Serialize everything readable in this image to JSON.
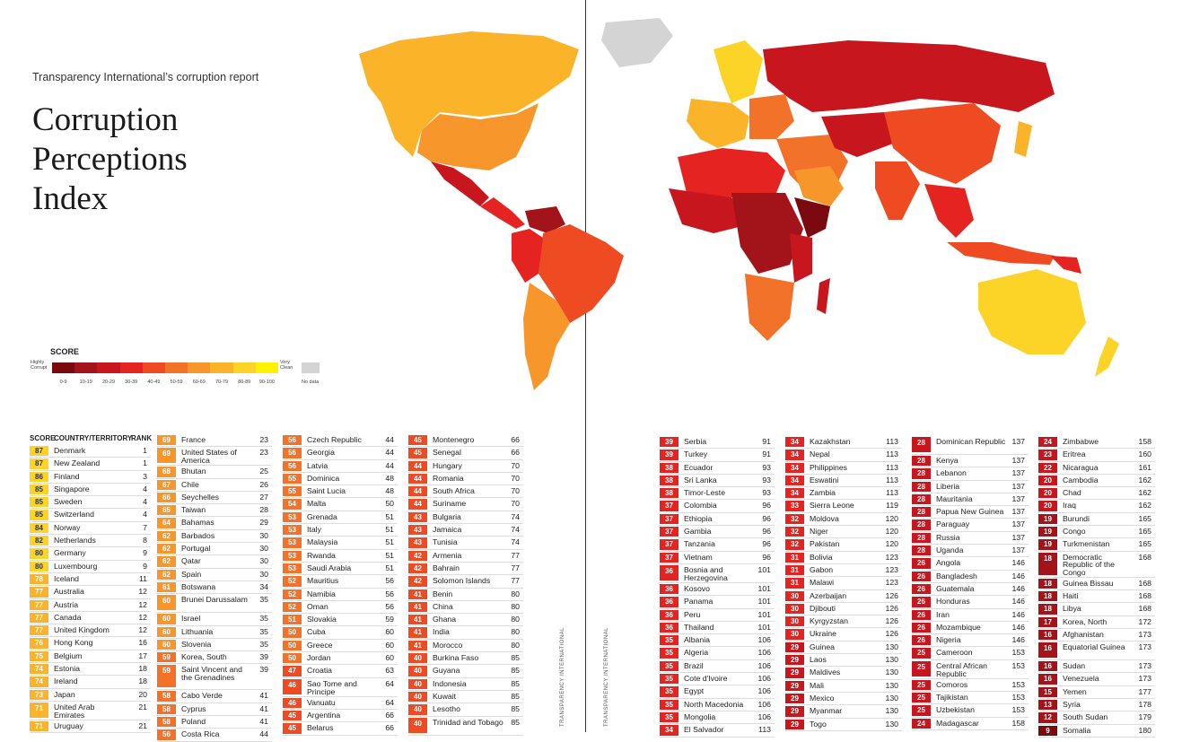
{
  "header": {
    "subtitle": "Transparency International’s corruption report",
    "title": "Corruption Perceptions Index",
    "spine_label_left": "TRANSPARENCY INTERNATIONAL",
    "spine_label_right": "TRANSPARENCY INTERNATIONAL"
  },
  "legend": {
    "title": "SCORE",
    "low_label": "Highly Corrupt",
    "high_label": "Very Clean",
    "no_data_label": "No data",
    "bins": [
      "0-9",
      "10-19",
      "20-29",
      "30-39",
      "40-49",
      "50-59",
      "60-69",
      "70-79",
      "80-89",
      "90-100"
    ],
    "colors": [
      "#7a0a10",
      "#a3131a",
      "#c8161e",
      "#e52421",
      "#ef4b23",
      "#f3722a",
      "#f7962a",
      "#fbb32a",
      "#fcd427",
      "#fff200"
    ],
    "no_data_color": "#d4d4d4"
  },
  "table_headers": {
    "score": "SCORE",
    "country": "COUNTRY/TERRITORY",
    "rank": "RANK"
  },
  "chart_data": {
    "type": "table",
    "title": "Corruption Perceptions Index",
    "columns": [
      "score",
      "country",
      "rank"
    ],
    "rows": [
      [
        87,
        "Denmark",
        1
      ],
      [
        87,
        "New Zealand",
        1
      ],
      [
        86,
        "Finland",
        3
      ],
      [
        85,
        "Singapore",
        4
      ],
      [
        85,
        "Sweden",
        4
      ],
      [
        85,
        "Switzerland",
        4
      ],
      [
        84,
        "Norway",
        7
      ],
      [
        82,
        "Netherlands",
        8
      ],
      [
        80,
        "Germany",
        9
      ],
      [
        80,
        "Luxembourg",
        9
      ],
      [
        78,
        "Iceland",
        11
      ],
      [
        77,
        "Australia",
        12
      ],
      [
        77,
        "Austria",
        12
      ],
      [
        77,
        "Canada",
        12
      ],
      [
        77,
        "United Kingdom",
        12
      ],
      [
        76,
        "Hong Kong",
        16
      ],
      [
        75,
        "Belgium",
        17
      ],
      [
        74,
        "Estonia",
        18
      ],
      [
        74,
        "Ireland",
        18
      ],
      [
        73,
        "Japan",
        20
      ],
      [
        71,
        "United Arab Emirates",
        21
      ],
      [
        71,
        "Uruguay",
        21
      ],
      [
        69,
        "France",
        23
      ],
      [
        69,
        "United States of America",
        23
      ],
      [
        68,
        "Bhutan",
        25
      ],
      [
        67,
        "Chile",
        26
      ],
      [
        66,
        "Seychelles",
        27
      ],
      [
        65,
        "Taiwan",
        28
      ],
      [
        64,
        "Bahamas",
        29
      ],
      [
        62,
        "Barbados",
        30
      ],
      [
        62,
        "Portugal",
        30
      ],
      [
        62,
        "Qatar",
        30
      ],
      [
        62,
        "Spain",
        30
      ],
      [
        61,
        "Botswana",
        34
      ],
      [
        60,
        "Brunei Darussalam",
        35
      ],
      [
        60,
        "Israel",
        35
      ],
      [
        60,
        "Lithuania",
        35
      ],
      [
        60,
        "Slovenia",
        35
      ],
      [
        59,
        "Korea, South",
        39
      ],
      [
        59,
        "Saint Vincent and the Grenadines",
        39
      ],
      [
        58,
        "Cabo Verde",
        41
      ],
      [
        58,
        "Cyprus",
        41
      ],
      [
        58,
        "Poland",
        41
      ],
      [
        56,
        "Costa Rica",
        44
      ],
      [
        56,
        "Czech Republic",
        44
      ],
      [
        56,
        "Georgia",
        44
      ],
      [
        56,
        "Latvia",
        44
      ],
      [
        55,
        "Dominica",
        48
      ],
      [
        55,
        "Saint Lucia",
        48
      ],
      [
        54,
        "Malta",
        50
      ],
      [
        53,
        "Grenada",
        51
      ],
      [
        53,
        "Italy",
        51
      ],
      [
        53,
        "Malaysia",
        51
      ],
      [
        53,
        "Rwanda",
        51
      ],
      [
        53,
        "Saudi Arabia",
        51
      ],
      [
        52,
        "Mauritius",
        56
      ],
      [
        52,
        "Namibia",
        56
      ],
      [
        52,
        "Oman",
        56
      ],
      [
        51,
        "Slovakia",
        59
      ],
      [
        50,
        "Cuba",
        60
      ],
      [
        50,
        "Greece",
        60
      ],
      [
        50,
        "Jordan",
        60
      ],
      [
        47,
        "Croatia",
        63
      ],
      [
        46,
        "Sao Tome and Principe",
        64
      ],
      [
        46,
        "Vanuatu",
        64
      ],
      [
        45,
        "Argentina",
        66
      ],
      [
        45,
        "Belarus",
        66
      ],
      [
        45,
        "Montenegro",
        66
      ],
      [
        45,
        "Senegal",
        66
      ],
      [
        44,
        "Hungary",
        70
      ],
      [
        44,
        "Romania",
        70
      ],
      [
        44,
        "South Africa",
        70
      ],
      [
        44,
        "Suriname",
        70
      ],
      [
        43,
        "Bulgaria",
        74
      ],
      [
        43,
        "Jamaica",
        74
      ],
      [
        43,
        "Tunisia",
        74
      ],
      [
        42,
        "Armenia",
        77
      ],
      [
        42,
        "Bahrain",
        77
      ],
      [
        42,
        "Solomon Islands",
        77
      ],
      [
        41,
        "Benin",
        80
      ],
      [
        41,
        "China",
        80
      ],
      [
        41,
        "Ghana",
        80
      ],
      [
        41,
        "India",
        80
      ],
      [
        41,
        "Morocco",
        80
      ],
      [
        40,
        "Burkina Faso",
        85
      ],
      [
        40,
        "Guyana",
        85
      ],
      [
        40,
        "Indonesia",
        85
      ],
      [
        40,
        "Kuwait",
        85
      ],
      [
        40,
        "Lesotho",
        85
      ],
      [
        40,
        "Trinidad and Tobago",
        85
      ],
      [
        39,
        "Serbia",
        91
      ],
      [
        39,
        "Turkey",
        91
      ],
      [
        38,
        "Ecuador",
        93
      ],
      [
        38,
        "Sri Lanka",
        93
      ],
      [
        38,
        "Timor-Leste",
        93
      ],
      [
        37,
        "Colombia",
        96
      ],
      [
        37,
        "Ethiopia",
        96
      ],
      [
        37,
        "Gambia",
        96
      ],
      [
        37,
        "Tanzania",
        96
      ],
      [
        37,
        "Vietnam",
        96
      ],
      [
        36,
        "Bosnia and Herzegovina",
        101
      ],
      [
        36,
        "Kosovo",
        101
      ],
      [
        36,
        "Panama",
        101
      ],
      [
        36,
        "Peru",
        101
      ],
      [
        36,
        "Thailand",
        101
      ],
      [
        35,
        "Albania",
        106
      ],
      [
        35,
        "Algeria",
        106
      ],
      [
        35,
        "Brazil",
        106
      ],
      [
        35,
        "Cote d'Ivoire",
        106
      ],
      [
        35,
        "Egypt",
        106
      ],
      [
        35,
        "North Macedonia",
        106
      ],
      [
        35,
        "Mongolia",
        106
      ],
      [
        34,
        "El Salvador",
        113
      ],
      [
        34,
        "Kazakhstan",
        113
      ],
      [
        34,
        "Nepal",
        113
      ],
      [
        34,
        "Philippines",
        113
      ],
      [
        34,
        "Eswatini",
        113
      ],
      [
        34,
        "Zambia",
        113
      ],
      [
        33,
        "Sierra Leone",
        119
      ],
      [
        32,
        "Moldova",
        120
      ],
      [
        32,
        "Niger",
        120
      ],
      [
        32,
        "Pakistan",
        120
      ],
      [
        31,
        "Bolivia",
        123
      ],
      [
        31,
        "Gabon",
        123
      ],
      [
        31,
        "Malawi",
        123
      ],
      [
        30,
        "Azerbaijan",
        126
      ],
      [
        30,
        "Djibouti",
        126
      ],
      [
        30,
        "Kyrgyzstan",
        126
      ],
      [
        30,
        "Ukraine",
        126
      ],
      [
        29,
        "Guinea",
        130
      ],
      [
        29,
        "Laos",
        130
      ],
      [
        29,
        "Maldives",
        130
      ],
      [
        29,
        "Mali",
        130
      ],
      [
        29,
        "Mexico",
        130
      ],
      [
        29,
        "Myanmar",
        130
      ],
      [
        29,
        "Togo",
        130
      ],
      [
        28,
        "Dominican Republic",
        137
      ],
      [
        28,
        "Kenya",
        137
      ],
      [
        28,
        "Lebanon",
        137
      ],
      [
        28,
        "Liberia",
        137
      ],
      [
        28,
        "Mauritania",
        137
      ],
      [
        28,
        "Papua New Guinea",
        137
      ],
      [
        28,
        "Paraguay",
        137
      ],
      [
        28,
        "Russia",
        137
      ],
      [
        28,
        "Uganda",
        137
      ],
      [
        26,
        "Angola",
        146
      ],
      [
        26,
        "Bangladesh",
        146
      ],
      [
        26,
        "Guatemala",
        146
      ],
      [
        26,
        "Honduras",
        146
      ],
      [
        26,
        "Iran",
        146
      ],
      [
        26,
        "Mozambique",
        146
      ],
      [
        26,
        "Nigeria",
        146
      ],
      [
        25,
        "Cameroon",
        153
      ],
      [
        25,
        "Central African Republic",
        153
      ],
      [
        25,
        "Comoros",
        153
      ],
      [
        25,
        "Tajikistan",
        153
      ],
      [
        25,
        "Uzbekistan",
        153
      ],
      [
        24,
        "Madagascar",
        158
      ],
      [
        24,
        "Zimbabwe",
        158
      ],
      [
        23,
        "Eritrea",
        160
      ],
      [
        22,
        "Nicaragua",
        161
      ],
      [
        20,
        "Cambodia",
        162
      ],
      [
        20,
        "Chad",
        162
      ],
      [
        20,
        "Iraq",
        162
      ],
      [
        19,
        "Burundi",
        165
      ],
      [
        19,
        "Congo",
        165
      ],
      [
        19,
        "Turkmenistan",
        165
      ],
      [
        18,
        "Democratic Republic of the Congo",
        168
      ],
      [
        18,
        "Guinea Bissau",
        168
      ],
      [
        18,
        "Haiti",
        168
      ],
      [
        18,
        "Libya",
        168
      ],
      [
        17,
        "Korea, North",
        172
      ],
      [
        16,
        "Afghanistan",
        173
      ],
      [
        16,
        "Equatorial Guinea",
        173
      ],
      [
        16,
        "Sudan",
        173
      ],
      [
        16,
        "Venezuela",
        173
      ],
      [
        15,
        "Yemen",
        177
      ],
      [
        13,
        "Syria",
        178
      ],
      [
        12,
        "South Sudan",
        179
      ],
      [
        9,
        "Somalia",
        180
      ]
    ]
  }
}
